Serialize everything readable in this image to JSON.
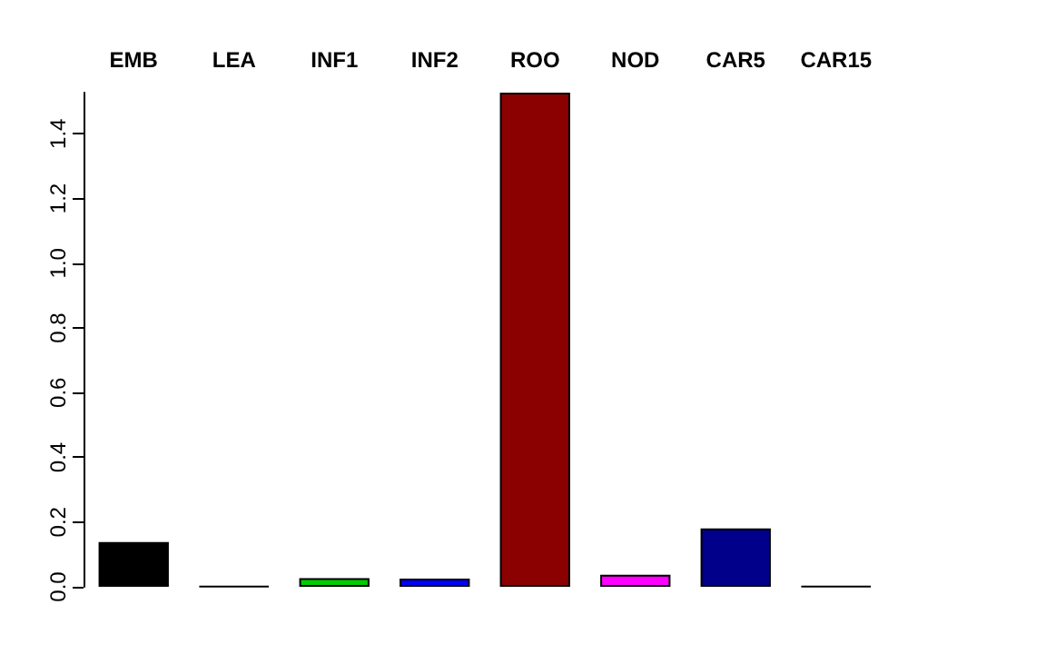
{
  "chart_data": {
    "type": "bar",
    "categories": [
      "EMB",
      "LEA",
      "INF1",
      "INF2",
      "ROO",
      "NOD",
      "CAR5",
      "CAR15"
    ],
    "values": [
      0.138,
      0.002,
      0.027,
      0.025,
      1.527,
      0.037,
      0.18,
      0.002
    ],
    "colors": [
      "#000000",
      "#000000",
      "#00cd00",
      "#0000ff",
      "#8b0000",
      "#ff00ff",
      "#00008b",
      "#000000"
    ],
    "ylim": [
      0,
      1.527
    ],
    "yticks": [
      {
        "value": 0,
        "label": "0.0"
      },
      {
        "value": 0.2,
        "label": "0.2"
      },
      {
        "value": 0.4,
        "label": "0.4"
      },
      {
        "value": 0.6,
        "label": "0.6"
      },
      {
        "value": 0.8,
        "label": "0.8"
      },
      {
        "value": 1,
        "label": "1.0"
      },
      {
        "value": 1.2,
        "label": "1.2"
      },
      {
        "value": 1.4,
        "label": "1.4"
      }
    ],
    "grid": false
  }
}
